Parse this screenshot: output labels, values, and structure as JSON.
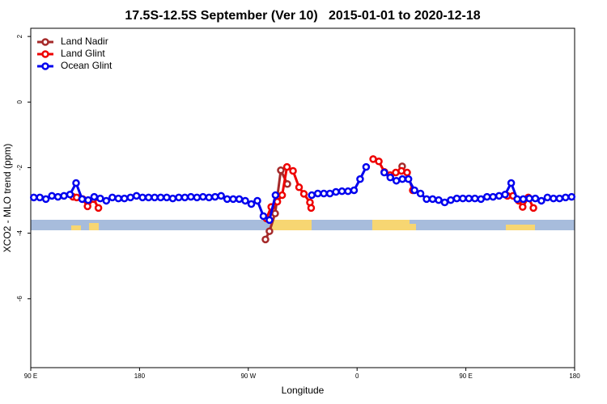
{
  "chart_data": {
    "type": "line",
    "title": "17.5S-12.5S September (Ver 10)   2015-01-01 to 2020-12-18",
    "x_label": "Longitude",
    "y_label": "XCO2 - MLO trend (ppm)",
    "xlim": [
      90,
      540
    ],
    "ylim": [
      -8.1,
      2.25
    ],
    "xticks": [
      {
        "value": 90,
        "label": "90 E"
      },
      {
        "value": 180,
        "label": "180"
      },
      {
        "value": 270,
        "label": "90 W"
      },
      {
        "value": 360,
        "label": "0"
      },
      {
        "value": 450,
        "label": "90 E"
      },
      {
        "value": 540,
        "label": "180"
      }
    ],
    "yticks": [
      2,
      0,
      -2,
      -4,
      -6
    ],
    "legend": "top-left",
    "series": [
      {
        "name": "Land Nadir",
        "color": "#a52a2a",
        "x": [
          284.2,
          287.5,
          292.2,
          296.9,
          302.3,
          null,
          397.3
        ],
        "values": [
          -4.19,
          -3.94,
          -3.4,
          -2.08,
          -2.5,
          null,
          -1.96
        ]
      },
      {
        "name": "Land Glint",
        "color": "#ee0000",
        "x": [
          125,
          128,
          133,
          137,
          142,
          146,
          null,
          285,
          289,
          294,
          298,
          302,
          307,
          312,
          316,
          321,
          322,
          null,
          373.3,
          378,
          382.6,
          387.3,
          392,
          396.7,
          401.4,
          406.1,
          null,
          484.4,
          489,
          493.7,
          497,
          501.7,
          505.9
        ],
        "values": [
          -2.89,
          -2.91,
          -2.96,
          -3.18,
          -2.96,
          -3.23,
          null,
          -3.55,
          -3.2,
          -3.04,
          -2.84,
          -1.98,
          -2.1,
          -2.6,
          -2.8,
          -3.06,
          -3.23,
          null,
          -1.74,
          -1.81,
          -2.13,
          -2.23,
          -2.15,
          -2.1,
          -2.15,
          -2.69,
          null,
          -2.86,
          -2.86,
          -3.01,
          -3.2,
          -2.91,
          -3.23
        ]
      },
      {
        "name": "Ocean Glint",
        "color": "#0000ee",
        "x": [
          92.5,
          97.5,
          102.5,
          107.5,
          112.5,
          117.5,
          122.5,
          127.5,
          132.5,
          137.5,
          142.5,
          147.5,
          152.5,
          157.5,
          162.5,
          167.5,
          172.5,
          177.5,
          182.5,
          187.5,
          192.5,
          197.5,
          202.5,
          207.5,
          212.5,
          217.5,
          222.5,
          227.5,
          232.5,
          237.5,
          242.5,
          247.5,
          252.5,
          257.5,
          262.5,
          267.5,
          272.5,
          277.5,
          282.5,
          287.5,
          292.5,
          297.5,
          302.5,
          307.5,
          312.5,
          317.5,
          322.5,
          327.5,
          332.5,
          337.5,
          342.5,
          347.5,
          352.5,
          357.5,
          362.5,
          367.5,
          372.5,
          377.5,
          382.5,
          387.5,
          392.5,
          397.5,
          402.5,
          407.5,
          412.5,
          417.5,
          422.5,
          427.5,
          432.5,
          437.5,
          442.5,
          447.5,
          452.5,
          457.5,
          462.5,
          467.5,
          472.5,
          477.5,
          482.5,
          487.5,
          492.5,
          497.5,
          502.5,
          507.5,
          512.5,
          517.5,
          522.5,
          527.5,
          532.5,
          537.5
        ],
        "values": [
          -2.91,
          -2.91,
          -2.96,
          -2.86,
          -2.89,
          -2.86,
          -2.82,
          -2.47,
          -2.96,
          -2.99,
          -2.89,
          -2.94,
          -3.01,
          -2.91,
          -2.94,
          -2.94,
          -2.91,
          -2.86,
          -2.91,
          -2.91,
          -2.91,
          -2.91,
          -2.91,
          -2.94,
          -2.91,
          -2.91,
          -2.89,
          -2.91,
          -2.89,
          -2.91,
          -2.89,
          -2.86,
          -2.96,
          -2.96,
          -2.96,
          -3.01,
          -3.11,
          -3.01,
          -3.48,
          -3.6,
          -2.84,
          null,
          null,
          null,
          null,
          null,
          -2.84,
          -2.79,
          -2.79,
          -2.79,
          -2.74,
          -2.72,
          -2.72,
          -2.69,
          -2.35,
          -1.98,
          null,
          null,
          -2.15,
          -2.3,
          -2.4,
          -2.35,
          -2.35,
          -2.69,
          -2.79,
          -2.96,
          -2.96,
          -2.99,
          -3.06,
          -2.99,
          -2.94,
          -2.94,
          -2.94,
          -2.94,
          -2.96,
          -2.89,
          -2.89,
          -2.86,
          -2.82,
          -2.47,
          -2.96,
          -2.96,
          -2.94,
          -2.94,
          -3.01,
          -2.91,
          -2.94,
          -2.94,
          -2.91,
          -2.89
        ]
      }
    ]
  }
}
